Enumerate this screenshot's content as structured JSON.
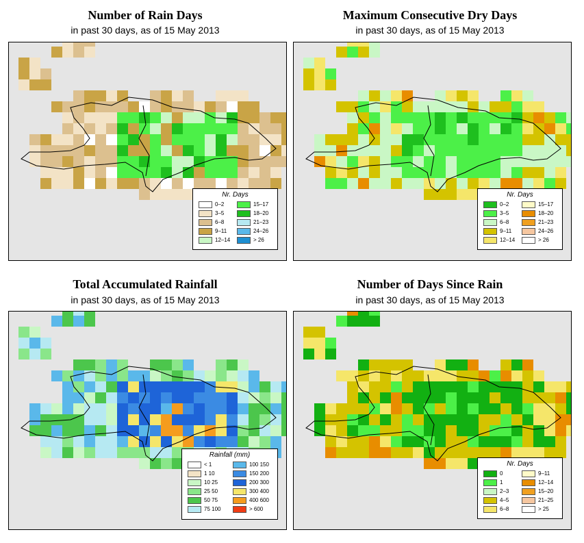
{
  "panels": [
    {
      "id": "rain-days",
      "title": "Number of Rain Days",
      "subtitle": "in past 30 days, as of  15 May 2013",
      "legend": {
        "title": "Nr. Days",
        "items": [
          {
            "label": "0–2",
            "color": "#ffffff"
          },
          {
            "label": "3–5",
            "color": "#f3e3c6"
          },
          {
            "label": "6–8",
            "color": "#dcc08f"
          },
          {
            "label": "9–11",
            "color": "#c9a446"
          },
          {
            "label": "12–14",
            "color": "#c9f7c5"
          },
          {
            "label": "15–17",
            "color": "#4cf048"
          },
          {
            "label": "18–20",
            "color": "#1ebf1e"
          },
          {
            "label": "21–23",
            "color": "#b6e9f2"
          },
          {
            "label": "24–26",
            "color": "#5ab8ea"
          },
          {
            "label": "> 26",
            "color": "#1e8fd2"
          }
        ]
      }
    },
    {
      "id": "dry-days",
      "title": "Maximum Consecutive Dry Days",
      "subtitle": "in past 30 days, as of  15 May 2013",
      "legend": {
        "title": "Nr. Days",
        "items": [
          {
            "label": "0–2",
            "color": "#1ebf1e"
          },
          {
            "label": "3–5",
            "color": "#4cf048"
          },
          {
            "label": "6–8",
            "color": "#c9f7c5"
          },
          {
            "label": "9–11",
            "color": "#d4c300"
          },
          {
            "label": "12–14",
            "color": "#f5e66a"
          },
          {
            "label": "15–17",
            "color": "#fffbc8"
          },
          {
            "label": "18–20",
            "color": "#e88d00"
          },
          {
            "label": "21–23",
            "color": "#f0a020"
          },
          {
            "label": "24–26",
            "color": "#f6c7a0"
          },
          {
            "label": "> 26",
            "color": "#ffffff"
          }
        ]
      }
    },
    {
      "id": "rainfall",
      "title": "Total Accumulated Rainfall",
      "subtitle": "in past 30 days, as of  15 May 2013",
      "legend": {
        "title": "Rainfall (mm)",
        "items": [
          {
            "label": "< 1",
            "color": "#ffffff"
          },
          {
            "label": "1   10",
            "color": "#f3e3c6"
          },
          {
            "label": "10   25",
            "color": "#c9f7c5"
          },
          {
            "label": "25   50",
            "color": "#8ae68a"
          },
          {
            "label": "50   75",
            "color": "#4cc64c"
          },
          {
            "label": "75   100",
            "color": "#b6e9f2"
          },
          {
            "label": "100   150",
            "color": "#5ab8ea"
          },
          {
            "label": "150   200",
            "color": "#3b8be3"
          },
          {
            "label": "200   300",
            "color": "#1e64d8"
          },
          {
            "label": "300   400",
            "color": "#f5e66a"
          },
          {
            "label": "400   600",
            "color": "#f59c1e"
          },
          {
            "label": "> 600",
            "color": "#f03c14"
          }
        ]
      }
    },
    {
      "id": "days-since-rain",
      "title": "Number of Days Since Rain",
      "subtitle": "in past 30 days, as of  15 May 2013",
      "legend": {
        "title": "Nr. Days",
        "items": [
          {
            "label": "0",
            "color": "#12b012"
          },
          {
            "label": "1",
            "color": "#4cf048"
          },
          {
            "label": "2–3",
            "color": "#c9f7c5"
          },
          {
            "label": "4–5",
            "color": "#d4c300"
          },
          {
            "label": "6–8",
            "color": "#f5e66a"
          },
          {
            "label": "9–11",
            "color": "#fffbc8"
          },
          {
            "label": "12–14",
            "color": "#e88d00"
          },
          {
            "label": "15–20",
            "color": "#f0a020"
          },
          {
            "label": "21–25",
            "color": "#f6c7a0"
          },
          {
            "label": "> 25",
            "color": "#ffffff"
          }
        ]
      }
    }
  ]
}
